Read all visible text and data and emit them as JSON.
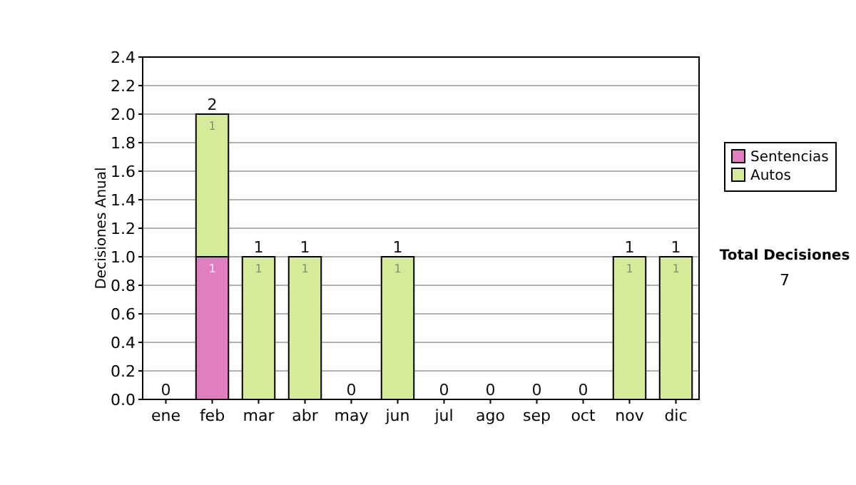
{
  "chart_data": {
    "type": "bar",
    "stacked": true,
    "ylabel": "Decisiones Anual",
    "categories": [
      "ene",
      "feb",
      "mar",
      "abr",
      "may",
      "jun",
      "jul",
      "ago",
      "sep",
      "oct",
      "nov",
      "dic"
    ],
    "series": [
      {
        "name": "Sentencias",
        "color": "#e07fc0",
        "values": [
          0,
          1,
          0,
          0,
          0,
          0,
          0,
          0,
          0,
          0,
          0,
          0
        ],
        "value_labels": [
          null,
          "1",
          null,
          null,
          null,
          null,
          null,
          null,
          null,
          null,
          null,
          null
        ]
      },
      {
        "name": "Autos",
        "color": "#d6eb99",
        "values": [
          0,
          1,
          1,
          1,
          0,
          1,
          0,
          0,
          0,
          0,
          1,
          1
        ],
        "value_labels": [
          null,
          "1",
          "1",
          "1",
          null,
          "1",
          null,
          null,
          null,
          null,
          "1",
          "1"
        ]
      }
    ],
    "totals": [
      "0",
      "2",
      "1",
      "1",
      "0",
      "1",
      "0",
      "0",
      "0",
      "0",
      "1",
      "1"
    ],
    "ylim": [
      0,
      2.4
    ],
    "yticks": [
      "0.0",
      "0.2",
      "0.4",
      "0.6",
      "0.8",
      "1.0",
      "1.2",
      "1.4",
      "1.6",
      "1.8",
      "2.0",
      "2.2",
      "2.4"
    ],
    "grid": "y",
    "legend": "right",
    "annotations": [
      "Total Decisiones",
      "7"
    ]
  }
}
